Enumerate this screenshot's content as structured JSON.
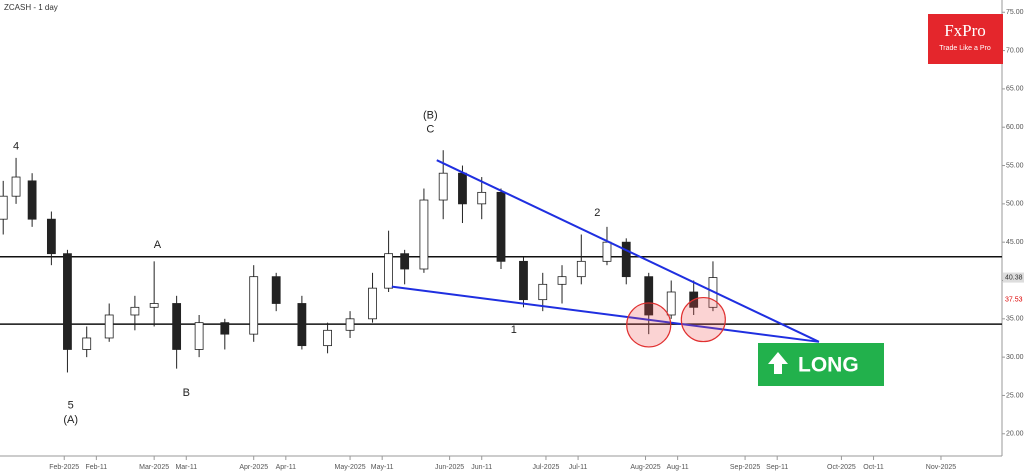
{
  "chart_data": {
    "type": "candlestick",
    "title": "ZCASH - 1 day",
    "xlim": [
      "2025-01-12",
      "2025-11-20"
    ],
    "ylim": [
      17.1,
      76.6
    ],
    "yticks": [
      {
        "value": 20,
        "label": "20.00"
      },
      {
        "value": 25,
        "label": "25.00"
      },
      {
        "value": 30,
        "label": "30.00"
      },
      {
        "value": 35,
        "label": "35.00"
      },
      {
        "value": 40,
        "label": "40.00"
      },
      {
        "value": 45,
        "label": "45.00"
      },
      {
        "value": 50,
        "label": "50.00"
      },
      {
        "value": 55,
        "label": "55.00"
      },
      {
        "value": 60,
        "label": "60.00"
      },
      {
        "value": 65,
        "label": "65.00"
      },
      {
        "value": 70,
        "label": "70.00"
      },
      {
        "value": 75,
        "label": "75.00"
      }
    ],
    "xticks": [
      {
        "value": "2025-02-01",
        "label": "Feb-2025"
      },
      {
        "value": "2025-02-11",
        "label": "Feb-11"
      },
      {
        "value": "2025-03-01",
        "label": "Mar-2025"
      },
      {
        "value": "2025-03-11",
        "label": "Mar-11"
      },
      {
        "value": "2025-04-01",
        "label": "Apr-2025"
      },
      {
        "value": "2025-04-11",
        "label": "Apr-11"
      },
      {
        "value": "2025-05-01",
        "label": "May-2025"
      },
      {
        "value": "2025-05-11",
        "label": "May-11"
      },
      {
        "value": "2025-06-01",
        "label": "Jun-2025"
      },
      {
        "value": "2025-06-11",
        "label": "Jun-11"
      },
      {
        "value": "2025-07-01",
        "label": "Jul-2025"
      },
      {
        "value": "2025-07-11",
        "label": "Jul-11"
      },
      {
        "value": "2025-08-01",
        "label": "Aug-2025"
      },
      {
        "value": "2025-08-11",
        "label": "Aug-11"
      },
      {
        "value": "2025-09-01",
        "label": "Sep-2025"
      },
      {
        "value": "2025-09-11",
        "label": "Sep-11"
      },
      {
        "value": "2025-10-01",
        "label": "Oct-2025"
      },
      {
        "value": "2025-10-11",
        "label": "Oct-11"
      },
      {
        "value": "2025-11-01",
        "label": "Nov-2025"
      }
    ],
    "x": [
      "2025-01-13",
      "2025-01-17",
      "2025-01-22",
      "2025-01-28",
      "2025-02-02",
      "2025-02-08",
      "2025-02-15",
      "2025-02-23",
      "2025-03-01",
      "2025-03-08",
      "2025-03-15",
      "2025-03-23",
      "2025-04-01",
      "2025-04-08",
      "2025-04-16",
      "2025-04-24",
      "2025-05-01",
      "2025-05-08",
      "2025-05-13",
      "2025-05-18",
      "2025-05-24",
      "2025-05-30",
      "2025-06-05",
      "2025-06-11",
      "2025-06-17",
      "2025-06-24",
      "2025-06-30",
      "2025-07-06",
      "2025-07-12",
      "2025-07-20",
      "2025-07-26",
      "2025-08-02",
      "2025-08-09",
      "2025-08-16",
      "2025-08-22"
    ],
    "open": [
      48,
      51,
      53,
      48,
      43.5,
      31,
      32.5,
      35.5,
      36.5,
      37,
      31,
      34.5,
      33,
      40.5,
      37,
      31.5,
      33.5,
      35,
      39,
      43.5,
      41.5,
      50.5,
      54,
      50,
      51.5,
      42.5,
      37.5,
      39.5,
      40.5,
      42.5,
      45,
      40.5,
      35.5,
      38.5,
      36.5
    ],
    "high": [
      53,
      56,
      54,
      49,
      44,
      34,
      37,
      38,
      42.5,
      38,
      35.5,
      35,
      42,
      41,
      38,
      34.5,
      36,
      41,
      46.5,
      44,
      52,
      57,
      55,
      53.5,
      52,
      43,
      41,
      42,
      46,
      47,
      45.5,
      41,
      40,
      40,
      42.5
    ],
    "low": [
      46,
      50,
      47,
      42,
      28,
      30,
      32,
      33.5,
      34,
      28.5,
      30,
      31,
      32,
      36,
      31,
      30.5,
      32.5,
      34.5,
      38.5,
      39.5,
      41,
      48,
      47.5,
      48,
      41.5,
      36.5,
      36,
      37,
      39.5,
      42,
      39.5,
      33,
      35,
      35.5,
      36
    ],
    "close": [
      51,
      53.5,
      48,
      43.5,
      31,
      32.5,
      35.5,
      36.5,
      37,
      31,
      34.5,
      33,
      40.5,
      37,
      31.5,
      33.5,
      35,
      39,
      43.5,
      41.5,
      50.5,
      54,
      50,
      51.5,
      42.5,
      37.5,
      39.5,
      40.5,
      42.5,
      45,
      40.5,
      35.5,
      38.5,
      36.5,
      40.38
    ],
    "levels": [
      43.1,
      34.3
    ],
    "trendlines": [
      {
        "start": {
          "x": "2025-05-28",
          "y": 55.7
        },
        "end": {
          "x": "2025-09-24",
          "y": 32
        }
      },
      {
        "start": {
          "x": "2025-05-14",
          "y": 39.2
        },
        "end": {
          "x": "2025-09-24",
          "y": 32
        }
      }
    ],
    "highlights": [
      {
        "x": "2025-08-02",
        "y": 34.2
      },
      {
        "x": "2025-08-19",
        "y": 34.9
      }
    ],
    "annotations": [
      {
        "text": "4",
        "x": "2025-01-17",
        "y": 57.5
      },
      {
        "text": "5",
        "x": "2025-02-03",
        "y": 23.7
      },
      {
        "text": "(A)",
        "x": "2025-02-03",
        "y": 21.8
      },
      {
        "text": "A",
        "x": "2025-03-02",
        "y": 44.6
      },
      {
        "text": "B",
        "x": "2025-03-11",
        "y": 25.3
      },
      {
        "text": "(B)",
        "x": "2025-05-26",
        "y": 61.5
      },
      {
        "text": "C",
        "x": "2025-05-26",
        "y": 59.7
      },
      {
        "text": "1",
        "x": "2025-06-21",
        "y": 33.5
      },
      {
        "text": "2",
        "x": "2025-07-17",
        "y": 48.8
      }
    ],
    "price_labels": [
      {
        "value": 40.38,
        "label": "40.38",
        "color": "#333333",
        "background": "#dddddd"
      },
      {
        "value": 37.53,
        "label": "37.53",
        "color": "#dd0000",
        "background": "#ffffff"
      }
    ],
    "logo": {
      "name": "FxPro",
      "tagline": "Trade Like a Pro",
      "color": "#e4262c"
    },
    "signal": {
      "label": "LONG",
      "color": "#22b14c"
    }
  }
}
